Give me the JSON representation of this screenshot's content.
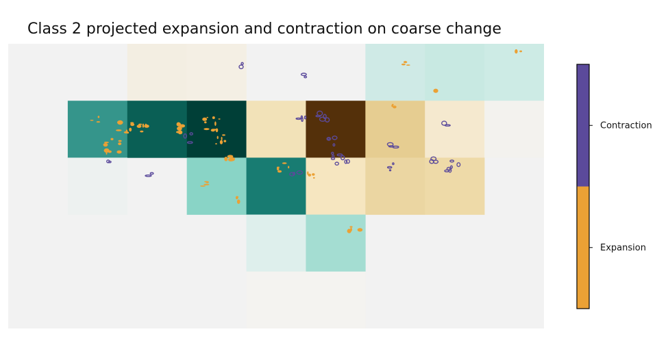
{
  "title": "Class 2 projected expansion and contraction on coarse change",
  "chart_data": {
    "type": "heatmap",
    "title": "Class 2 projected expansion and contraction on coarse change",
    "grid": {
      "rows": 5,
      "cols": 9
    },
    "background_color": "#f2f2f2",
    "cells": [
      {
        "row": 0,
        "col": 2,
        "color": "#f3eee2"
      },
      {
        "row": 0,
        "col": 3,
        "color": "#f4efe4"
      },
      {
        "row": 0,
        "col": 6,
        "color": "#cfeae6"
      },
      {
        "row": 0,
        "col": 7,
        "color": "#c8e9e2"
      },
      {
        "row": 0,
        "col": 8,
        "color": "#cdebe5"
      },
      {
        "row": 1,
        "col": 1,
        "color": "#35958b"
      },
      {
        "row": 1,
        "col": 2,
        "color": "#0a5f55"
      },
      {
        "row": 1,
        "col": 3,
        "color": "#003f37"
      },
      {
        "row": 1,
        "col": 4,
        "color": "#f2e2b8"
      },
      {
        "row": 1,
        "col": 5,
        "color": "#54300a"
      },
      {
        "row": 1,
        "col": 6,
        "color": "#e6cd91"
      },
      {
        "row": 1,
        "col": 7,
        "color": "#f5e9cf"
      },
      {
        "row": 1,
        "col": 8,
        "color": "#f3f2ee"
      },
      {
        "row": 2,
        "col": 1,
        "color": "#edf1f0"
      },
      {
        "row": 2,
        "col": 3,
        "color": "#89d4c6"
      },
      {
        "row": 2,
        "col": 4,
        "color": "#187c72"
      },
      {
        "row": 2,
        "col": 5,
        "color": "#f6e6c0"
      },
      {
        "row": 2,
        "col": 6,
        "color": "#ebd6a2"
      },
      {
        "row": 2,
        "col": 7,
        "color": "#eedaa8"
      },
      {
        "row": 3,
        "col": 4,
        "color": "#deefec"
      },
      {
        "row": 3,
        "col": 5,
        "color": "#a4ddd2"
      },
      {
        "row": 4,
        "col": 4,
        "color": "#f4f3f0"
      },
      {
        "row": 4,
        "col": 5,
        "color": "#f4f3f0"
      }
    ],
    "legend": {
      "type": "colorbar",
      "position": "right",
      "entries": [
        {
          "label": "Contraction",
          "color": "#5b4a9b"
        },
        {
          "label": "Expansion",
          "color": "#eba135"
        }
      ]
    },
    "overlay_colors": {
      "contraction": "#5b4a9b",
      "expansion": "#eba135"
    }
  }
}
